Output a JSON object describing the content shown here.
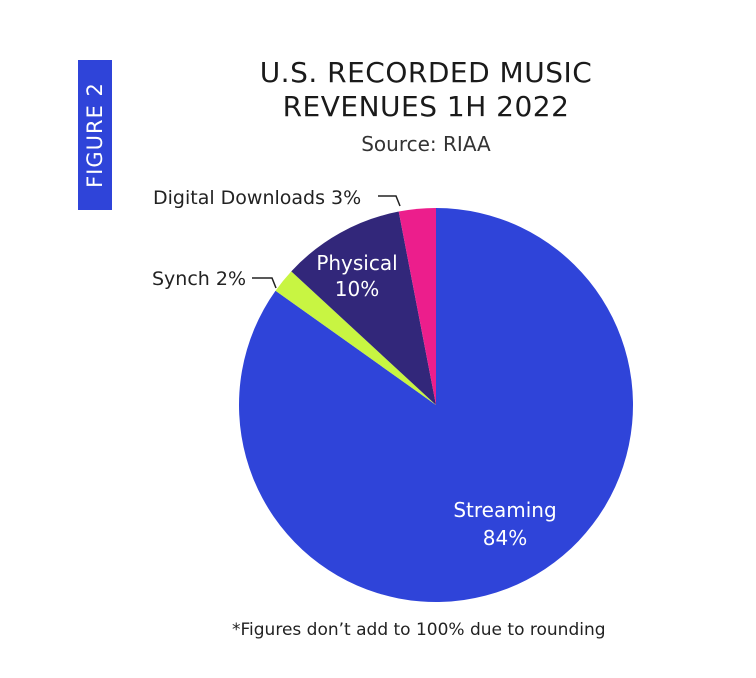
{
  "figure_label": "FIGURE 2",
  "footnote": "*Figures don’t add to 100% due to rounding",
  "colors": {
    "figure_tag": "#2f44d9",
    "streaming": "#2f44d9",
    "synch": "#c8f542",
    "physical": "#32277a",
    "digital_downloads": "#ec1e8c"
  },
  "chart_data": {
    "type": "pie",
    "title_lines": [
      "U.S. RECORDED MUSIC",
      "REVENUES 1H 2022"
    ],
    "subtitle": "Source: RIAA",
    "slices": [
      {
        "key": "streaming",
        "label": "Streaming",
        "value": 84,
        "value_label": "84%",
        "label_position": "inside"
      },
      {
        "key": "synch",
        "label": "Synch 2%",
        "value": 2,
        "value_label": "",
        "label_position": "outside"
      },
      {
        "key": "physical",
        "label": "Physical",
        "value": 10,
        "value_label": "10%",
        "label_position": "inside"
      },
      {
        "key": "digital_downloads",
        "label": "Digital Downloads 3%",
        "value": 3,
        "value_label": "",
        "label_position": "outside"
      }
    ]
  }
}
